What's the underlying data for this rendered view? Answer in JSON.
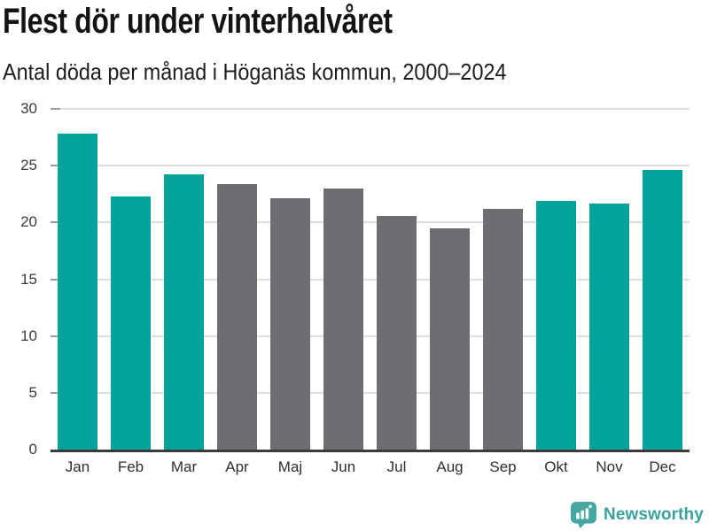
{
  "chart_data": {
    "type": "bar",
    "title": "Flest dör under vinterhalvåret",
    "subtitle": "Antal döda per månad i Höganäs kommun, 2000–2024",
    "categories": [
      "Jan",
      "Feb",
      "Mar",
      "Apr",
      "Maj",
      "Jun",
      "Jul",
      "Aug",
      "Sep",
      "Okt",
      "Nov",
      "Dec"
    ],
    "values": [
      27.8,
      22.3,
      24.2,
      23.4,
      22.1,
      23.0,
      20.6,
      19.5,
      21.2,
      21.9,
      21.7,
      24.6
    ],
    "xlabel": "",
    "ylabel": "",
    "ylim": [
      0,
      30
    ],
    "yticks": [
      0,
      5,
      10,
      15,
      20,
      25,
      30
    ],
    "grid": true,
    "legend": "none",
    "highlighted_categories": [
      "Jan",
      "Feb",
      "Mar",
      "Okt",
      "Nov",
      "Dec"
    ],
    "colors": {
      "highlight": "#00a39a",
      "muted": "#6d6d72",
      "gridline": "#dedede",
      "tick_mark": "#9b9b9b",
      "axis_line": "#3b3b3b",
      "tick_label": "#3a3a3a",
      "title_text": "#141414"
    }
  },
  "footer": {
    "brand": "Newsworthy",
    "logo_icon": "bar-chart-speech-bubble-icon",
    "brand_color": "#3ba19b",
    "logo_fill": "#46a6a0"
  }
}
